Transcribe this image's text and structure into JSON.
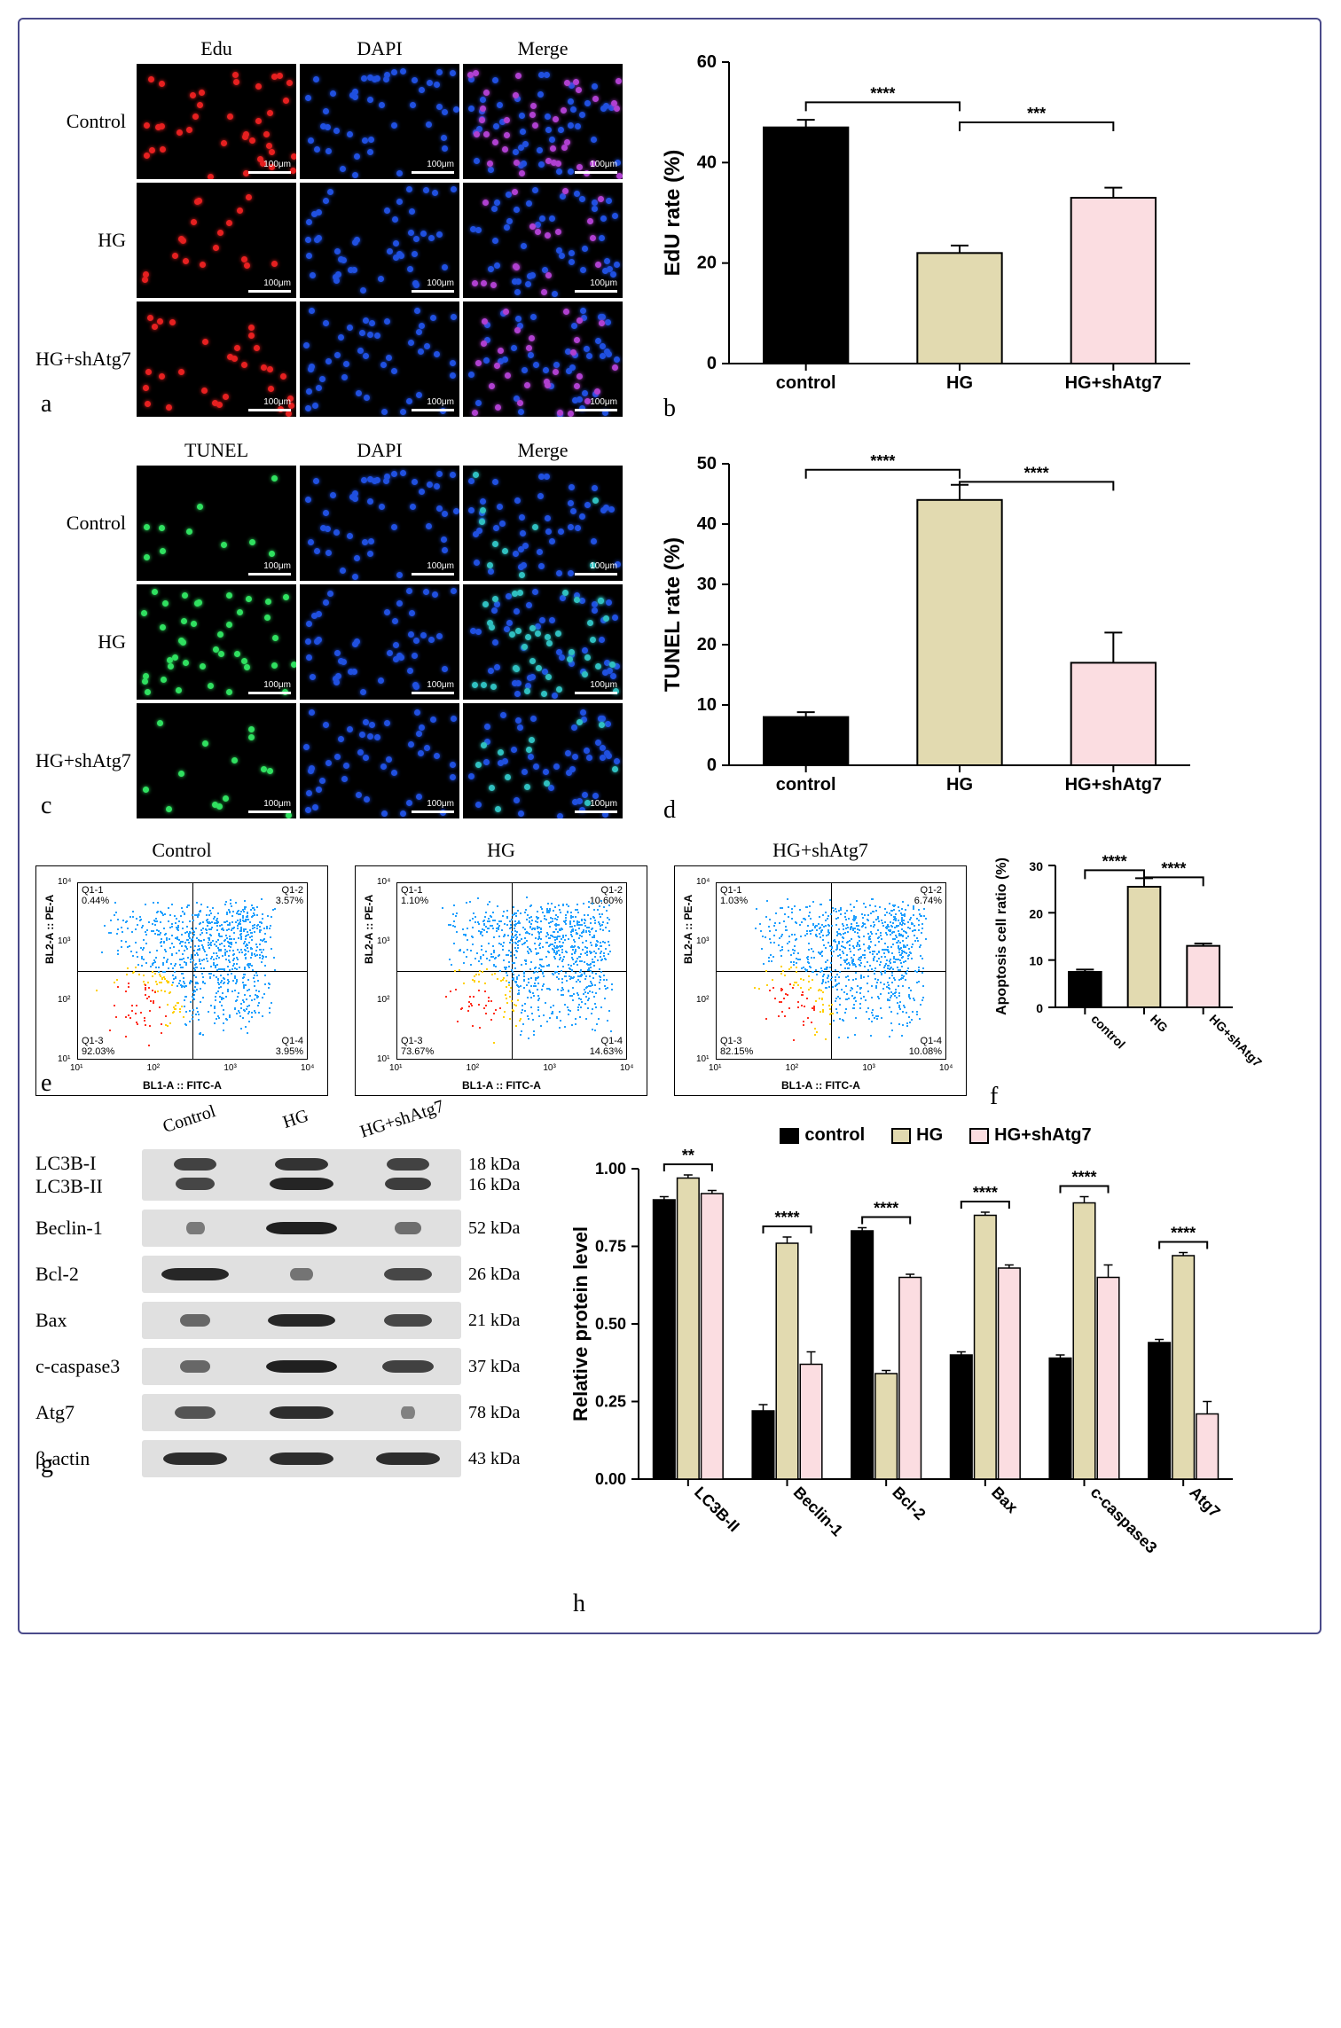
{
  "colors": {
    "control_bar": "#000000",
    "hg_bar": "#e2dab0",
    "hg_sh_bar": "#fbdde1",
    "bar_border": "#000000",
    "edu_dot": "#e62020",
    "dapi_dot": "#2050e0",
    "merge_dot": "#b040d0",
    "tunel_dot": "#30e060",
    "tunel_merge_dot": "#30c0c0",
    "flow_high": "#ff3020",
    "flow_mid": "#ffd000",
    "flow_low": "#20a0ff",
    "background": "#ffffff",
    "border": "#4a4a8a"
  },
  "panel_a": {
    "col_headers": [
      "Edu",
      "DAPI",
      "Merge"
    ],
    "row_headers": [
      "Control",
      "HG",
      "HG+shAtg7"
    ],
    "scale_label": "100μm",
    "dot_density": {
      "Control": 38,
      "HG": 18,
      "HG+shAtg7": 30
    },
    "primary_color_per_col": [
      "edu_dot",
      "dapi_dot",
      "merge_dot"
    ]
  },
  "panel_b": {
    "ylabel": "EdU rate (%)",
    "ylim": [
      0,
      60
    ],
    "ytick_step": 20,
    "categories": [
      "control",
      "HG",
      "HG+shAtg7"
    ],
    "values": [
      47,
      22,
      33
    ],
    "errors": [
      1.5,
      1.5,
      2
    ],
    "bar_colors": [
      "control_bar",
      "hg_bar",
      "hg_sh_bar"
    ],
    "sig": [
      {
        "from": 0,
        "to": 1,
        "stars": "****",
        "y": 52
      },
      {
        "from": 1,
        "to": 2,
        "stars": "***",
        "y": 48
      }
    ],
    "label_fontsize": 24,
    "tick_fontsize": 20
  },
  "panel_c": {
    "col_headers": [
      "TUNEL",
      "DAPI",
      "Merge"
    ],
    "row_headers": [
      "Control",
      "HG",
      "HG+shAtg7"
    ],
    "scale_label": "100μm",
    "dot_density": {
      "Control": 10,
      "HG": 40,
      "HG+shAtg7": 14
    },
    "primary_color_per_col": [
      "tunel_dot",
      "dapi_dot",
      "tunel_merge_dot"
    ]
  },
  "panel_d": {
    "ylabel": "TUNEL rate (%)",
    "ylim": [
      0,
      50
    ],
    "ytick_step": 10,
    "categories": [
      "control",
      "HG",
      "HG+shAtg7"
    ],
    "values": [
      8,
      44,
      17
    ],
    "errors": [
      0.8,
      2.5,
      5
    ],
    "bar_colors": [
      "control_bar",
      "hg_bar",
      "hg_sh_bar"
    ],
    "sig": [
      {
        "from": 0,
        "to": 1,
        "stars": "****",
        "y": 49
      },
      {
        "from": 1,
        "to": 2,
        "stars": "****",
        "y": 47
      }
    ],
    "label_fontsize": 24,
    "tick_fontsize": 20
  },
  "panel_e": {
    "titles": [
      "Control",
      "HG",
      "HG+shAtg7"
    ],
    "x_axis_label": "BL1-A :: FITC-A",
    "y_axis_label": "BL2-A :: PE-A",
    "log_ticks": [
      "10¹",
      "10²",
      "10³",
      "10⁴"
    ],
    "quadrants": [
      {
        "q11": "0.44%",
        "q12": "3.57%",
        "q13": "92.03%",
        "q14": "3.95%",
        "center_shift_x": 0,
        "density": "high-left"
      },
      {
        "q11": "1.10%",
        "q12": "10.60%",
        "q13": "73.67%",
        "q14": "14.63%",
        "center_shift_x": 20,
        "density": "spread"
      },
      {
        "q11": "1.03%",
        "q12": "6.74%",
        "q13": "82.15%",
        "q14": "10.08%",
        "center_shift_x": 12,
        "density": "mid"
      }
    ]
  },
  "panel_f": {
    "ylabel": "Apoptosis cell ratio (%)",
    "ylim": [
      0,
      30
    ],
    "ytick_step": 10,
    "categories": [
      "control",
      "HG",
      "HG+shAtg7"
    ],
    "values": [
      7.5,
      25.5,
      13
    ],
    "errors": [
      0.5,
      1.8,
      0.5
    ],
    "bar_colors": [
      "control_bar",
      "hg_bar",
      "hg_sh_bar"
    ],
    "sig": [
      {
        "from": 0,
        "to": 1,
        "stars": "****",
        "y": 29
      },
      {
        "from": 1,
        "to": 2,
        "stars": "****",
        "y": 27.5
      }
    ],
    "label_fontsize": 16,
    "tick_fontsize": 14,
    "rotate_xlabels": true
  },
  "panel_g": {
    "lane_headers": [
      "Control",
      "HG",
      "HG+shAtg7"
    ],
    "rows": [
      {
        "label": "LC3B-I",
        "sublabel": "LC3B-II",
        "kda": "18 kDa",
        "kda2": "16 kDa",
        "double": true,
        "bands": [
          {
            "x": 0,
            "up": 0.6,
            "low": 0.55
          },
          {
            "x": 1,
            "up": 0.75,
            "low": 0.9
          },
          {
            "x": 2,
            "up": 0.6,
            "low": 0.65
          }
        ]
      },
      {
        "label": "Beclin-1",
        "kda": "52 kDa",
        "bands": [
          {
            "x": 0,
            "w": 0.25
          },
          {
            "x": 1,
            "w": 0.95
          },
          {
            "x": 2,
            "w": 0.35
          }
        ]
      },
      {
        "label": "Bcl-2",
        "kda": "26 kDa",
        "bands": [
          {
            "x": 0,
            "w": 0.9
          },
          {
            "x": 1,
            "w": 0.3
          },
          {
            "x": 2,
            "w": 0.65
          }
        ]
      },
      {
        "label": "Bax",
        "kda": "21 kDa",
        "bands": [
          {
            "x": 0,
            "w": 0.4
          },
          {
            "x": 1,
            "w": 0.9
          },
          {
            "x": 2,
            "w": 0.65
          }
        ]
      },
      {
        "label": "c-caspase3",
        "kda": "37 kDa",
        "bands": [
          {
            "x": 0,
            "w": 0.4
          },
          {
            "x": 1,
            "w": 0.95
          },
          {
            "x": 2,
            "w": 0.7
          }
        ]
      },
      {
        "label": "Atg7",
        "kda": "78 kDa",
        "bands": [
          {
            "x": 0,
            "w": 0.55
          },
          {
            "x": 1,
            "w": 0.85
          },
          {
            "x": 2,
            "w": 0.2
          }
        ]
      },
      {
        "label": "β-actin",
        "kda": "43 kDa",
        "bands": [
          {
            "x": 0,
            "w": 0.85
          },
          {
            "x": 1,
            "w": 0.85
          },
          {
            "x": 2,
            "w": 0.85
          }
        ]
      }
    ]
  },
  "panel_h": {
    "ylabel": "Relative protein level",
    "ylim": [
      0,
      1.0
    ],
    "ytick_step": 0.25,
    "legend": [
      "control",
      "HG",
      "HG+shAtg7"
    ],
    "legend_colors": [
      "control_bar",
      "hg_bar",
      "hg_sh_bar"
    ],
    "groups": [
      "LC3B-II",
      "Beclin-1",
      "Bcl-2",
      "Bax",
      "c-caspase3",
      "Atg7"
    ],
    "series": {
      "control": [
        0.9,
        0.22,
        0.8,
        0.4,
        0.39,
        0.44
      ],
      "HG": [
        0.97,
        0.76,
        0.34,
        0.85,
        0.89,
        0.72
      ],
      "HG+shAtg7": [
        0.92,
        0.37,
        0.65,
        0.68,
        0.65,
        0.21
      ]
    },
    "errors": {
      "control": [
        0.01,
        0.02,
        0.01,
        0.01,
        0.01,
        0.01
      ],
      "HG": [
        0.01,
        0.02,
        0.01,
        0.01,
        0.02,
        0.01
      ],
      "HG+shAtg7": [
        0.01,
        0.04,
        0.01,
        0.01,
        0.04,
        0.04
      ]
    },
    "sig_per_group": [
      "**",
      "****",
      "****",
      "****",
      "****",
      "****"
    ],
    "label_fontsize": 22,
    "tick_fontsize": 18,
    "rotate_xlabels": true
  },
  "panel_letters": {
    "a": "a",
    "b": "b",
    "c": "c",
    "d": "d",
    "e": "e",
    "f": "f",
    "g": "g",
    "h": "h"
  }
}
